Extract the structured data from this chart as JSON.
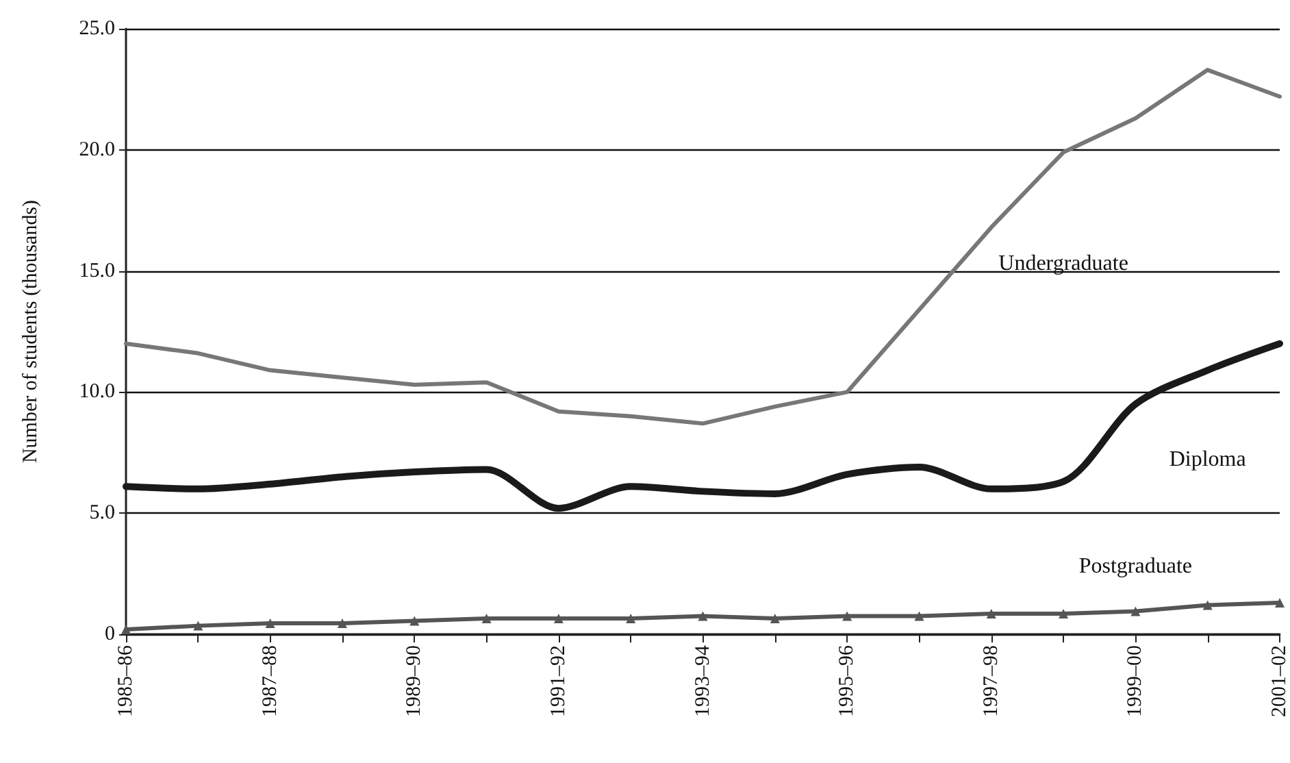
{
  "chart_data": {
    "type": "line",
    "ylabel": "Number of students (thousands)",
    "categories": [
      "1985–86",
      null,
      "1987–88",
      null,
      "1989–90",
      null,
      "1991–92",
      null,
      "1993–94",
      null,
      "1995–96",
      null,
      "1997–98",
      null,
      "1999–00",
      null,
      "2001–02"
    ],
    "series": [
      {
        "name": "Undergraduate",
        "color": "#777777",
        "values": [
          12.0,
          11.6,
          10.9,
          10.6,
          10.3,
          10.4,
          9.2,
          9.0,
          8.7,
          9.4,
          10.0,
          13.4,
          16.8,
          19.9,
          21.3,
          23.3,
          22.2
        ]
      },
      {
        "name": "Diploma",
        "color": "#1a1a1a",
        "values": [
          6.1,
          6.0,
          6.2,
          6.5,
          6.7,
          6.8,
          5.2,
          6.1,
          5.9,
          5.8,
          6.6,
          6.9,
          6.0,
          6.3,
          9.5,
          10.9,
          12.0
        ]
      },
      {
        "name": "Postgraduate",
        "color": "#555555",
        "marker": "triangle",
        "values": [
          0.2,
          0.35,
          0.45,
          0.45,
          0.55,
          0.65,
          0.65,
          0.65,
          0.75,
          0.65,
          0.75,
          0.75,
          0.85,
          0.85,
          0.95,
          1.2,
          1.3
        ]
      }
    ],
    "ylim": [
      0,
      25
    ],
    "yticks": [
      0,
      {
        "value": 5,
        "label": "5.0"
      },
      {
        "value": 10,
        "label": "10.0"
      },
      {
        "value": 15,
        "label": "15.0"
      },
      {
        "value": 20,
        "label": "20.0"
      },
      {
        "value": 25,
        "label": "25.0"
      }
    ],
    "grid": "y",
    "marker": "none",
    "legend": false
  }
}
